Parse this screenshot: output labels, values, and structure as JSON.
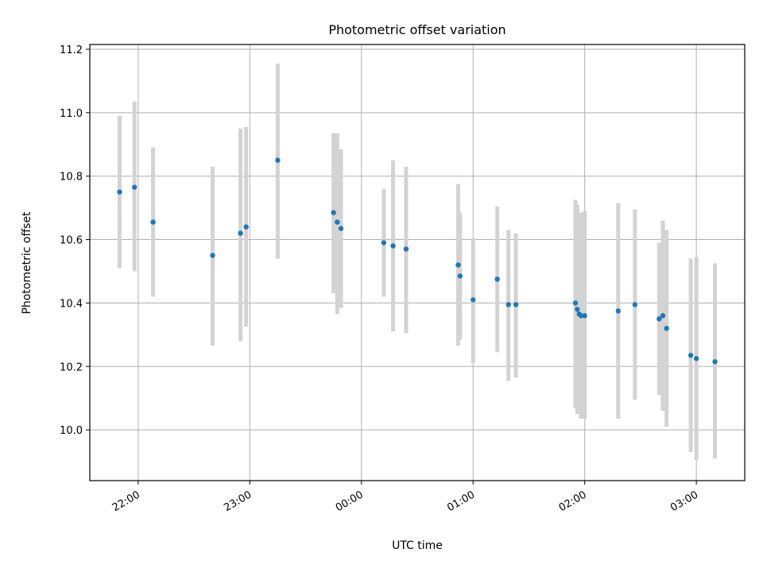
{
  "chart_data": {
    "type": "scatter",
    "title": "Photometric offset variation",
    "xlabel": "UTC time",
    "ylabel": "Photometric offset",
    "x_ticks": [
      "22:00",
      "23:00",
      "00:00",
      "01:00",
      "02:00",
      "03:00"
    ],
    "y_ticks": [
      "10.0",
      "10.2",
      "10.4",
      "10.6",
      "10.8",
      "11.0",
      "11.2"
    ],
    "x_range": [
      "21:34",
      "03:26"
    ],
    "ylim": [
      9.84,
      11.215
    ],
    "grid": true,
    "colors": {
      "point": "#1f77b4",
      "errorbar": "#d3d3d3",
      "grid": "#b0b0b0"
    },
    "points": [
      {
        "t": "21:50",
        "y": 10.75,
        "lo": 10.51,
        "hi": 10.99
      },
      {
        "t": "21:58",
        "y": 10.765,
        "lo": 10.5,
        "hi": 11.035
      },
      {
        "t": "22:08",
        "y": 10.655,
        "lo": 10.42,
        "hi": 10.89
      },
      {
        "t": "22:40",
        "y": 10.55,
        "lo": 10.265,
        "hi": 10.83
      },
      {
        "t": "22:55",
        "y": 10.62,
        "lo": 10.28,
        "hi": 10.95
      },
      {
        "t": "22:58",
        "y": 10.64,
        "lo": 10.325,
        "hi": 10.955
      },
      {
        "t": "23:15",
        "y": 10.85,
        "lo": 10.54,
        "hi": 11.155
      },
      {
        "t": "23:45",
        "y": 10.685,
        "lo": 10.43,
        "hi": 10.935
      },
      {
        "t": "23:47",
        "y": 10.655,
        "lo": 10.365,
        "hi": 10.935
      },
      {
        "t": "23:49",
        "y": 10.635,
        "lo": 10.385,
        "hi": 10.885
      },
      {
        "t": "00:12",
        "y": 10.59,
        "lo": 10.42,
        "hi": 10.76
      },
      {
        "t": "00:17",
        "y": 10.58,
        "lo": 10.31,
        "hi": 10.85
      },
      {
        "t": "00:24",
        "y": 10.57,
        "lo": 10.305,
        "hi": 10.83
      },
      {
        "t": "00:52",
        "y": 10.52,
        "lo": 10.265,
        "hi": 10.775
      },
      {
        "t": "00:53",
        "y": 10.485,
        "lo": 10.285,
        "hi": 10.685
      },
      {
        "t": "01:00",
        "y": 10.41,
        "lo": 10.21,
        "hi": 10.605
      },
      {
        "t": "01:13",
        "y": 10.475,
        "lo": 10.245,
        "hi": 10.705
      },
      {
        "t": "01:19",
        "y": 10.395,
        "lo": 10.155,
        "hi": 10.63
      },
      {
        "t": "01:23",
        "y": 10.395,
        "lo": 10.165,
        "hi": 10.62
      },
      {
        "t": "01:55",
        "y": 10.4,
        "lo": 10.07,
        "hi": 10.725
      },
      {
        "t": "01:56",
        "y": 10.38,
        "lo": 10.05,
        "hi": 10.71
      },
      {
        "t": "01:57",
        "y": 10.365,
        "lo": 10.06,
        "hi": 10.665
      },
      {
        "t": "01:58",
        "y": 10.36,
        "lo": 10.035,
        "hi": 10.685
      },
      {
        "t": "02:00",
        "y": 10.36,
        "lo": 10.035,
        "hi": 10.69
      },
      {
        "t": "02:18",
        "y": 10.375,
        "lo": 10.035,
        "hi": 10.715
      },
      {
        "t": "02:27",
        "y": 10.395,
        "lo": 10.095,
        "hi": 10.695
      },
      {
        "t": "02:40",
        "y": 10.35,
        "lo": 10.11,
        "hi": 10.59
      },
      {
        "t": "02:42",
        "y": 10.36,
        "lo": 10.06,
        "hi": 10.66
      },
      {
        "t": "02:44",
        "y": 10.32,
        "lo": 10.01,
        "hi": 10.63
      },
      {
        "t": "02:57",
        "y": 10.235,
        "lo": 9.93,
        "hi": 10.54
      },
      {
        "t": "03:00",
        "y": 10.225,
        "lo": 9.905,
        "hi": 10.545
      },
      {
        "t": "03:10",
        "y": 10.215,
        "lo": 9.91,
        "hi": 10.525
      }
    ]
  }
}
